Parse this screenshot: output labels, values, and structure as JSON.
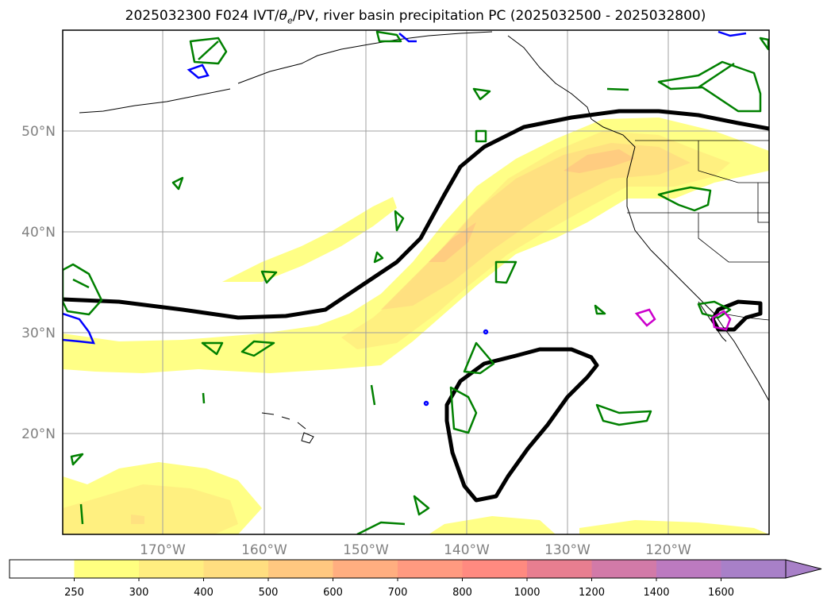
{
  "title": {
    "prefix": "2025032300 F024 IVT/",
    "theta": "θ",
    "sub": "e",
    "suffix": "/PV, river basin precipitation PC (2025032500 - 2025032800)"
  },
  "map": {
    "lat_labels": [
      "50°N",
      "40°N",
      "30°N",
      "20°N"
    ],
    "lon_labels": [
      "170°W",
      "160°W",
      "150°W",
      "140°W",
      "130°W",
      "120°W"
    ],
    "lat_values": [
      50,
      40,
      30,
      20
    ],
    "lon_values": [
      -170,
      -160,
      -150,
      -140,
      -130,
      -120
    ],
    "extent": {
      "lon_min": -180,
      "lon_max": -110.3,
      "lat_min": 10,
      "lat_max": 59.6
    },
    "gridlines": true,
    "ivt_colormap": "yellow-to-purple filled contours",
    "pv_contour_color": "#000000",
    "theta_contour_colors": {
      "green": "#008000",
      "blue": "#0000ff",
      "magenta": "#cc00cc"
    }
  },
  "colorbar": {
    "levels": [
      "250",
      "300",
      "400",
      "500",
      "600",
      "700",
      "800",
      "1000",
      "1200",
      "1400",
      "1600"
    ],
    "colors": [
      "#ffffff",
      "#ffff80",
      "#ffee80",
      "#ffde80",
      "#ffc880",
      "#ffae80",
      "#ff9a80",
      "#ff8a80",
      "#e87e90",
      "#d27aa8",
      "#bc7ac0",
      "#a880c8"
    ],
    "extend": "max"
  }
}
